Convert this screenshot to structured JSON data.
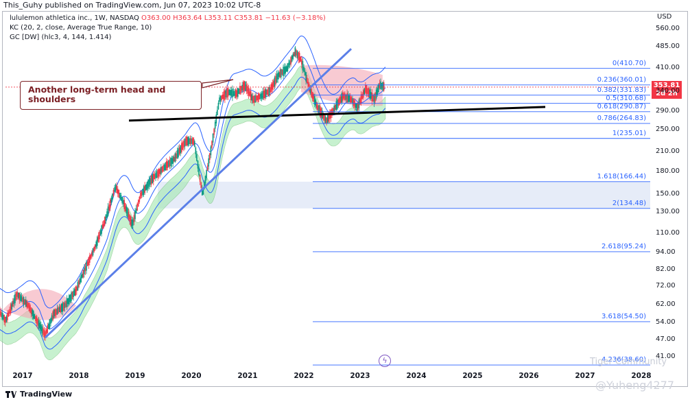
{
  "header": {
    "publisher_line": "This_Guhy published on TradingView.com, Jun 07, 2023 10:02 UTC-8"
  },
  "legend": {
    "symbol": "lululemon athletica inc., 1W, NASDAQ",
    "ohlc": "O363.00  H363.64  L353.11  C353.81  −11.63 (−3.18%)",
    "indicator_1": "KC (20, 2, close, Average True Range, 10)",
    "indicator_2": "GC [DW] (hlc3, 4, 144, 1.414)"
  },
  "callout": {
    "text": "Another long-term head and shoulders"
  },
  "price_axis": {
    "currency": "USD"
  },
  "price_tag": {
    "price": "353.81",
    "countdown": "2d 2h"
  },
  "footer": {
    "brand": "TradingView",
    "watermark": "@Yuheng4277",
    "community_mark": "Tiger Community"
  },
  "colors": {
    "candle_up": "#089981",
    "candle_down": "#f23645",
    "keltner": "#2962ff",
    "fib": "#2962ff",
    "trendline": "#5b7fe8"
  },
  "chart_data": {
    "type": "candlestick",
    "symbol": "LULU",
    "timeframe": "1W",
    "y_scale": "log",
    "ylim": [
      38,
      640
    ],
    "x_ticks": [
      "2017",
      "2018",
      "2019",
      "2020",
      "2021",
      "2022",
      "2023",
      "2024",
      "2025",
      "2026",
      "2027",
      "2028"
    ],
    "y_ticks": [
      41.0,
      47.0,
      54.0,
      62.0,
      72.0,
      82.0,
      94.0,
      110.0,
      130.0,
      150.0,
      180.0,
      210.0,
      250.0,
      290.0,
      340.0,
      410.0,
      485.0,
      560.0
    ],
    "fib_levels": [
      {
        "ratio": "0",
        "price": 410.7,
        "label": "0(410.70)"
      },
      {
        "ratio": "0.236",
        "price": 360.01,
        "label": "0.236(360.01)"
      },
      {
        "ratio": "0.382",
        "price": 331.83,
        "label": "0.382(331.83)"
      },
      {
        "ratio": "0.5",
        "price": 310.68,
        "label": "0.5(310.68)"
      },
      {
        "ratio": "0.618",
        "price": 290.87,
        "label": "0.618(290.87)"
      },
      {
        "ratio": "0.786",
        "price": 264.83,
        "label": "0.786(264.83)"
      },
      {
        "ratio": "1",
        "price": 235.01,
        "label": "1(235.01)"
      },
      {
        "ratio": "1.618",
        "price": 166.44,
        "label": "1.618(166.44)"
      },
      {
        "ratio": "2",
        "price": 134.48,
        "label": "2(134.48)"
      },
      {
        "ratio": "2.618",
        "price": 95.24,
        "label": "2.618(95.24)"
      },
      {
        "ratio": "3.618",
        "price": 54.5,
        "label": "3.618(54.50)"
      },
      {
        "ratio": "4.236",
        "price": 38.6,
        "label": "4.236(38.60)"
      }
    ],
    "price_path": [
      [
        2016.5,
        62
      ],
      [
        2016.7,
        55
      ],
      [
        2016.9,
        68
      ],
      [
        2017.1,
        62
      ],
      [
        2017.3,
        53
      ],
      [
        2017.4,
        49
      ],
      [
        2017.55,
        58
      ],
      [
        2017.75,
        62
      ],
      [
        2017.95,
        70
      ],
      [
        2018.1,
        82
      ],
      [
        2018.3,
        100
      ],
      [
        2018.5,
        128
      ],
      [
        2018.65,
        160
      ],
      [
        2018.8,
        140
      ],
      [
        2018.95,
        118
      ],
      [
        2019.1,
        150
      ],
      [
        2019.3,
        170
      ],
      [
        2019.5,
        185
      ],
      [
        2019.7,
        200
      ],
      [
        2019.9,
        230
      ],
      [
        2020.05,
        230
      ],
      [
        2020.2,
        150
      ],
      [
        2020.35,
        215
      ],
      [
        2020.5,
        320
      ],
      [
        2020.65,
        340
      ],
      [
        2020.8,
        335
      ],
      [
        2020.95,
        360
      ],
      [
        2021.1,
        320
      ],
      [
        2021.25,
        330
      ],
      [
        2021.4,
        345
      ],
      [
        2021.55,
        390
      ],
      [
        2021.7,
        410
      ],
      [
        2021.85,
        470
      ],
      [
        2021.95,
        440
      ],
      [
        2022.1,
        350
      ],
      [
        2022.25,
        300
      ],
      [
        2022.4,
        270
      ],
      [
        2022.55,
        300
      ],
      [
        2022.7,
        330
      ],
      [
        2022.85,
        320
      ],
      [
        2022.95,
        300
      ],
      [
        2023.1,
        350
      ],
      [
        2023.25,
        320
      ],
      [
        2023.35,
        360
      ],
      [
        2023.45,
        354
      ]
    ],
    "last": {
      "open": 363.0,
      "high": 363.64,
      "low": 353.11,
      "close": 353.81,
      "change": -11.63,
      "change_pct": -3.18
    }
  }
}
